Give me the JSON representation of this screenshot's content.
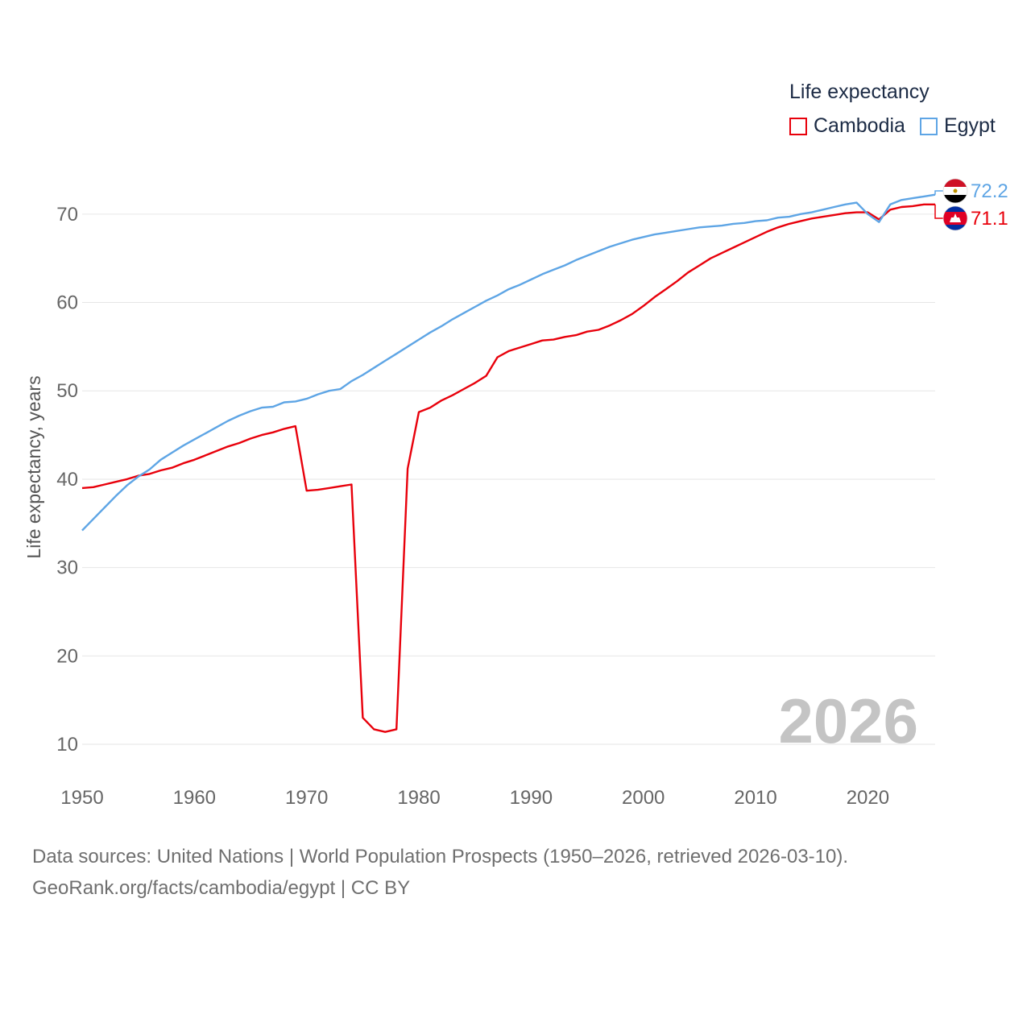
{
  "chart_data": {
    "type": "line",
    "title": "Life expectancy",
    "xlabel": "",
    "ylabel": "Life expectancy, years",
    "xlim": [
      1950,
      2026
    ],
    "ylim": [
      8,
      76
    ],
    "x_ticks": [
      1950,
      1960,
      1970,
      1980,
      1990,
      2000,
      2010,
      2020
    ],
    "y_ticks": [
      10,
      20,
      30,
      40,
      50,
      60,
      70
    ],
    "grid": true,
    "legend_position": "top-right",
    "x": [
      1950,
      1951,
      1952,
      1953,
      1954,
      1955,
      1956,
      1957,
      1958,
      1959,
      1960,
      1961,
      1962,
      1963,
      1964,
      1965,
      1966,
      1967,
      1968,
      1969,
      1970,
      1971,
      1972,
      1973,
      1974,
      1975,
      1976,
      1977,
      1978,
      1979,
      1980,
      1981,
      1982,
      1983,
      1984,
      1985,
      1986,
      1987,
      1988,
      1989,
      1990,
      1991,
      1992,
      1993,
      1994,
      1995,
      1996,
      1997,
      1998,
      1999,
      2000,
      2001,
      2002,
      2003,
      2004,
      2005,
      2006,
      2007,
      2008,
      2009,
      2010,
      2011,
      2012,
      2013,
      2014,
      2015,
      2016,
      2017,
      2018,
      2019,
      2020,
      2021,
      2022,
      2023,
      2024,
      2025,
      2026
    ],
    "series": [
      {
        "name": "Cambodia",
        "color": "#e8000b",
        "end_label": "71.1",
        "values": [
          39.0,
          39.1,
          39.4,
          39.7,
          40.0,
          40.4,
          40.6,
          41.0,
          41.3,
          41.8,
          42.2,
          42.7,
          43.2,
          43.7,
          44.1,
          44.6,
          45.0,
          45.3,
          45.7,
          46.0,
          38.7,
          38.8,
          39.0,
          39.2,
          39.4,
          13.0,
          11.7,
          11.4,
          11.7,
          41.2,
          47.6,
          48.1,
          48.9,
          49.5,
          50.2,
          50.9,
          51.7,
          53.8,
          54.5,
          54.9,
          55.3,
          55.7,
          55.8,
          56.1,
          56.3,
          56.7,
          56.9,
          57.4,
          58.0,
          58.7,
          59.6,
          60.6,
          61.5,
          62.4,
          63.4,
          64.2,
          65.0,
          65.6,
          66.2,
          66.8,
          67.4,
          68.0,
          68.5,
          68.9,
          69.2,
          69.5,
          69.7,
          69.9,
          70.1,
          70.2,
          70.2,
          69.4,
          70.5,
          70.8,
          70.9,
          71.1,
          71.1
        ]
      },
      {
        "name": "Egypt",
        "color": "#5ea5e5",
        "end_label": "72.2",
        "values": [
          34.2,
          35.5,
          36.8,
          38.1,
          39.3,
          40.3,
          41.1,
          42.2,
          43.0,
          43.8,
          44.5,
          45.2,
          45.9,
          46.6,
          47.2,
          47.7,
          48.1,
          48.2,
          48.7,
          48.8,
          49.1,
          49.6,
          50.0,
          50.2,
          51.1,
          51.8,
          52.6,
          53.4,
          54.2,
          55.0,
          55.8,
          56.6,
          57.3,
          58.1,
          58.8,
          59.5,
          60.2,
          60.8,
          61.5,
          62.0,
          62.6,
          63.2,
          63.7,
          64.2,
          64.8,
          65.3,
          65.8,
          66.3,
          66.7,
          67.1,
          67.4,
          67.7,
          67.9,
          68.1,
          68.3,
          68.5,
          68.6,
          68.7,
          68.9,
          69.0,
          69.2,
          69.3,
          69.6,
          69.7,
          70.0,
          70.2,
          70.5,
          70.8,
          71.1,
          71.3,
          70.0,
          69.1,
          71.1,
          71.6,
          71.8,
          72.0,
          72.2
        ]
      }
    ]
  },
  "watermark_year": "2026",
  "sources_line1": "Data sources: United Nations | World Population Prospects (1950–2026, retrieved 2026-03-10).",
  "sources_line2": "GeoRank.org/facts/cambodia/egypt | CC BY",
  "flags": {
    "egypt": "egypt-flag-icon",
    "cambodia": "cambodia-flag-icon"
  }
}
